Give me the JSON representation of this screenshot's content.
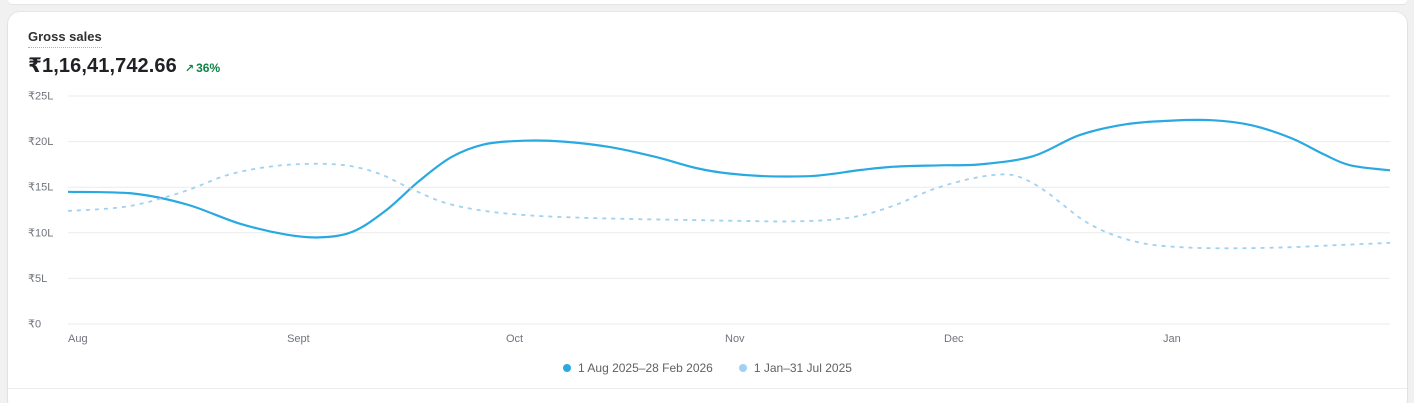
{
  "header": {
    "title": "Gross sales",
    "value": "₹1,16,41,742.66",
    "delta": {
      "arrow": "↗",
      "label": "36%",
      "color": "#0e8345"
    }
  },
  "colors": {
    "current_period_line": "#29a9e1",
    "previous_period_line": "#9fd1f1",
    "gridline": "#ebebeb",
    "axis_label": "#70747b",
    "card_background": "#ffffff",
    "page_background": "#f1f1f1",
    "positive_delta_green": "#0e8345"
  },
  "legend": {
    "items": [
      {
        "label": "1 Aug 2025–28 Feb 2026",
        "color": "#29a9e1"
      },
      {
        "label": "1 Jan–31 Jul 2025",
        "color": "#9fd1f1"
      }
    ]
  },
  "chart_data": {
    "type": "line",
    "title": "Gross sales",
    "unit": "INR lakh (L)",
    "grid": true,
    "legend_position": "bottom",
    "y_axis": {
      "ticks": [
        "₹25L",
        "₹20L",
        "₹15L",
        "₹10L",
        "₹5L",
        "₹0"
      ],
      "values": [
        25,
        20,
        15,
        10,
        5,
        0
      ],
      "ylim": [
        0,
        25
      ]
    },
    "x_axis": {
      "ticks": [
        "Aug",
        "Sept",
        "Oct",
        "Nov",
        "Dec",
        "Jan"
      ],
      "positions": [
        0,
        0.1657,
        0.3313,
        0.497,
        0.6626,
        0.8283
      ]
    },
    "series": [
      {
        "name": "1 Aug 2025–28 Feb 2026",
        "style": "solid",
        "color": "#29a9e1",
        "points": [
          [
            0.0,
            14.5
          ],
          [
            0.05,
            14.3
          ],
          [
            0.09,
            13.1
          ],
          [
            0.13,
            11.0
          ],
          [
            0.165,
            9.8
          ],
          [
            0.19,
            9.5
          ],
          [
            0.215,
            10.1
          ],
          [
            0.24,
            12.4
          ],
          [
            0.265,
            15.6
          ],
          [
            0.29,
            18.3
          ],
          [
            0.315,
            19.7
          ],
          [
            0.345,
            20.1
          ],
          [
            0.375,
            20.0
          ],
          [
            0.41,
            19.4
          ],
          [
            0.445,
            18.3
          ],
          [
            0.475,
            17.1
          ],
          [
            0.5,
            16.5
          ],
          [
            0.53,
            16.2
          ],
          [
            0.565,
            16.25
          ],
          [
            0.6,
            16.9
          ],
          [
            0.625,
            17.25
          ],
          [
            0.66,
            17.4
          ],
          [
            0.69,
            17.5
          ],
          [
            0.73,
            18.4
          ],
          [
            0.765,
            20.7
          ],
          [
            0.8,
            21.9
          ],
          [
            0.835,
            22.3
          ],
          [
            0.865,
            22.35
          ],
          [
            0.895,
            21.8
          ],
          [
            0.925,
            20.4
          ],
          [
            0.95,
            18.6
          ],
          [
            0.97,
            17.4
          ],
          [
            1.0,
            16.85
          ]
        ]
      },
      {
        "name": "1 Jan–31 Jul 2025",
        "style": "dashed",
        "color": "#9fd1f1",
        "points": [
          [
            0.0,
            12.4
          ],
          [
            0.045,
            12.9
          ],
          [
            0.085,
            14.4
          ],
          [
            0.12,
            16.3
          ],
          [
            0.15,
            17.2
          ],
          [
            0.18,
            17.55
          ],
          [
            0.21,
            17.4
          ],
          [
            0.235,
            16.5
          ],
          [
            0.26,
            14.8
          ],
          [
            0.285,
            13.3
          ],
          [
            0.315,
            12.4
          ],
          [
            0.35,
            11.9
          ],
          [
            0.39,
            11.65
          ],
          [
            0.43,
            11.5
          ],
          [
            0.47,
            11.4
          ],
          [
            0.51,
            11.3
          ],
          [
            0.545,
            11.25
          ],
          [
            0.575,
            11.4
          ],
          [
            0.6,
            11.9
          ],
          [
            0.625,
            13.0
          ],
          [
            0.655,
            14.8
          ],
          [
            0.685,
            16.0
          ],
          [
            0.71,
            16.4
          ],
          [
            0.725,
            15.8
          ],
          [
            0.74,
            14.5
          ],
          [
            0.755,
            12.8
          ],
          [
            0.77,
            11.2
          ],
          [
            0.79,
            9.8
          ],
          [
            0.815,
            8.8
          ],
          [
            0.845,
            8.4
          ],
          [
            0.88,
            8.3
          ],
          [
            0.92,
            8.4
          ],
          [
            0.96,
            8.65
          ],
          [
            1.0,
            8.9
          ]
        ]
      }
    ]
  }
}
